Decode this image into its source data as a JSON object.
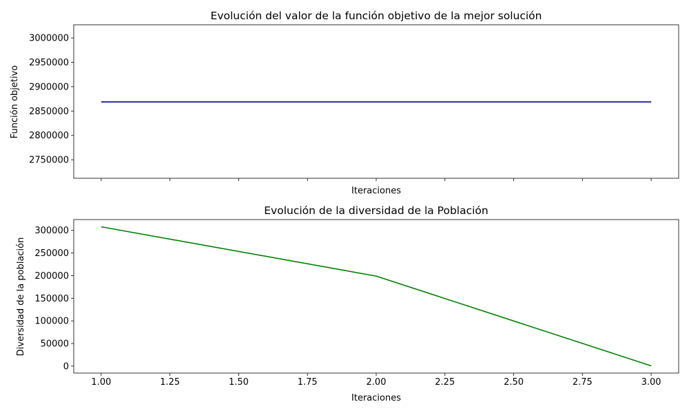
{
  "chart_data": [
    {
      "type": "line",
      "title": "Evolución del valor de la función objetivo de la mejor solución",
      "xlabel": "Iteraciones",
      "ylabel": "Función objetivo",
      "x": [
        1,
        2,
        3
      ],
      "series": [
        {
          "values": [
            2868600,
            2868600,
            2868600
          ],
          "color": "#00008b"
        }
      ],
      "xlim": [
        0.9,
        3.1
      ],
      "ylim": [
        2712000,
        3027000
      ],
      "xticks": [
        1.0,
        1.25,
        1.5,
        1.75,
        2.0,
        2.25,
        2.5,
        2.75,
        3.0
      ],
      "xtick_labels_shown": false,
      "yticks": [
        2750000,
        2800000,
        2850000,
        2900000,
        2950000,
        3000000
      ],
      "ytick_labels": [
        "2750000",
        "2800000",
        "2850000",
        "2900000",
        "2950000",
        "3000000"
      ],
      "grid": false
    },
    {
      "type": "line",
      "title": "Evolución de la diversidad de la Población",
      "xlabel": "Iteraciones",
      "ylabel": "Diversidad de la población",
      "x": [
        1,
        2,
        3
      ],
      "series": [
        {
          "values": [
            308000,
            199000,
            500
          ],
          "color": "#008000"
        }
      ],
      "xlim": [
        0.9,
        3.1
      ],
      "ylim": [
        -15400,
        323900
      ],
      "xticks": [
        1.0,
        1.25,
        1.5,
        1.75,
        2.0,
        2.25,
        2.5,
        2.75,
        3.0
      ],
      "xtick_labels": [
        "1.00",
        "1.25",
        "1.50",
        "1.75",
        "2.00",
        "2.25",
        "2.50",
        "2.75",
        "3.00"
      ],
      "xtick_labels_shown": true,
      "yticks": [
        0,
        50000,
        100000,
        150000,
        200000,
        250000,
        300000
      ],
      "ytick_labels": [
        "0",
        "50000",
        "100000",
        "150000",
        "200000",
        "250000",
        "300000"
      ],
      "grid": false
    }
  ]
}
